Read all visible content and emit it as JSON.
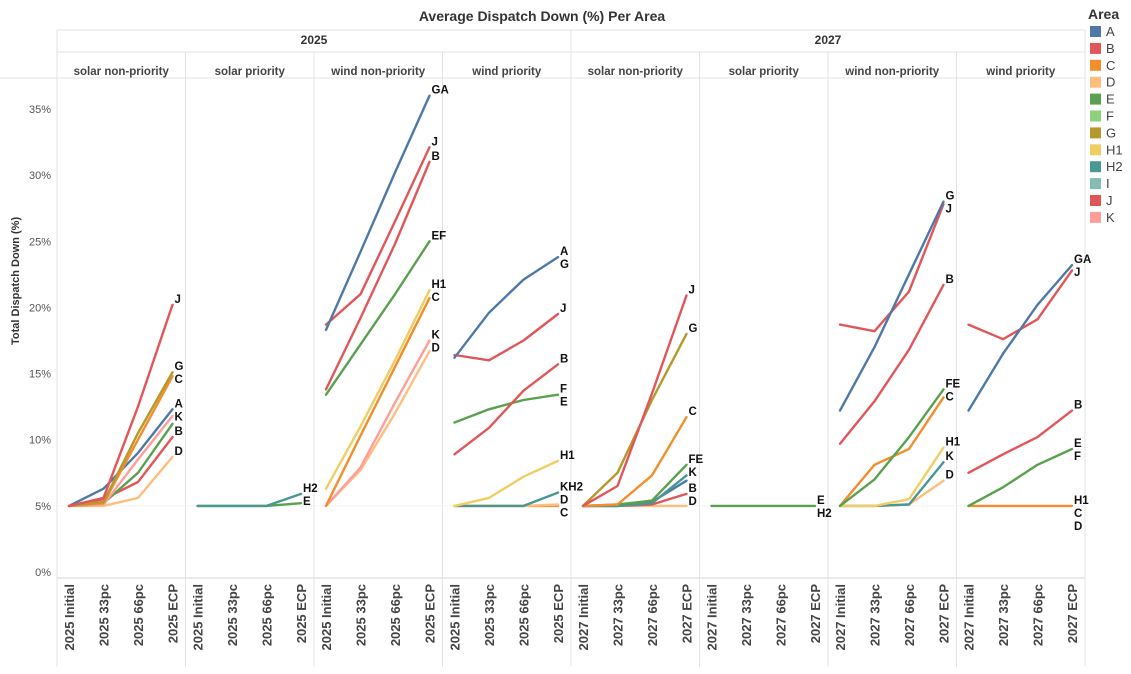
{
  "chart_data": {
    "type": "line",
    "title": "Average Dispatch Down (%) Per Area",
    "ylabel": "Total Dispatch Down (%)",
    "xlabel": "",
    "ylim": [
      0,
      37
    ],
    "yticks": [
      0,
      5,
      10,
      15,
      20,
      25,
      30,
      35
    ],
    "ytick_labels": [
      "0%",
      "5%",
      "10%",
      "15%",
      "20%",
      "25%",
      "30%",
      "35%"
    ],
    "grid": false,
    "legend_position": "right",
    "legend": {
      "title": "Area",
      "entries": [
        {
          "name": "A",
          "color": "#4e79a7"
        },
        {
          "name": "B",
          "color": "#e15759"
        },
        {
          "name": "C",
          "color": "#f28e2b"
        },
        {
          "name": "D",
          "color": "#ffbe7d"
        },
        {
          "name": "E",
          "color": "#59a14f"
        },
        {
          "name": "F",
          "color": "#8cd17d"
        },
        {
          "name": "G",
          "color": "#b6992d"
        },
        {
          "name": "H1",
          "color": "#f1ce63"
        },
        {
          "name": "H2",
          "color": "#499894"
        },
        {
          "name": "I",
          "color": "#86bcb6"
        },
        {
          "name": "J",
          "color": "#e15759"
        },
        {
          "name": "K",
          "color": "#ff9d9a"
        }
      ]
    },
    "years": [
      {
        "label": "2025",
        "panels": [
          0,
          1,
          2,
          3
        ]
      },
      {
        "label": "2027",
        "panels": [
          4,
          5,
          6,
          7
        ]
      }
    ],
    "panels": [
      {
        "label": "solar non-priority",
        "categories": [
          "2025 Initial",
          "2025 33pc",
          "2025 66pc",
          "2025 ECP"
        ],
        "series": [
          {
            "area": "J",
            "values": [
              5,
              5.6,
              12.5,
              20.2
            ]
          },
          {
            "area": "G",
            "values": [
              5,
              5.3,
              10.5,
              15.1
            ]
          },
          {
            "area": "C",
            "values": [
              5,
              5.2,
              10,
              14.8
            ]
          },
          {
            "area": "A",
            "values": [
              5,
              6.3,
              9,
              12.3
            ]
          },
          {
            "area": "K",
            "values": [
              5,
              5.1,
              8.5,
              11.8
            ]
          },
          {
            "area": "E",
            "values": [
              5,
              5.2,
              7.5,
              11.2
            ]
          },
          {
            "area": "B",
            "values": [
              5,
              5.5,
              6.8,
              10.2
            ]
          },
          {
            "area": "D",
            "values": [
              5,
              5,
              5.6,
              8.7
            ]
          }
        ],
        "labels": [
          {
            "text": "J",
            "area": "J"
          },
          {
            "text": "G",
            "area": "G"
          },
          {
            "text": "C",
            "area": "C"
          },
          {
            "text": "A",
            "area": "A"
          },
          {
            "text": "K",
            "area": "K"
          },
          {
            "text": "B",
            "area": "B"
          },
          {
            "text": "D",
            "area": "D"
          }
        ]
      },
      {
        "label": "solar priority",
        "categories": [
          "2025 Initial",
          "2025 33pc",
          "2025 66pc",
          "2025 ECP"
        ],
        "series": [
          {
            "area": "H2",
            "values": [
              5,
              5,
              5,
              5.9
            ]
          },
          {
            "area": "E",
            "values": [
              5,
              5,
              5,
              5.2
            ]
          }
        ],
        "labels": [
          {
            "text": "H2",
            "area": "H2"
          },
          {
            "text": "E",
            "area": "E"
          }
        ]
      },
      {
        "label": "wind non-priority",
        "categories": [
          "2025 Initial",
          "2025 33pc",
          "2025 66pc",
          "2025 ECP"
        ],
        "series": [
          {
            "area": "A",
            "values": [
              18.3,
              24.2,
              30.2,
              36
            ]
          },
          {
            "area": "J",
            "values": [
              18.7,
              21,
              26.5,
              32.1
            ]
          },
          {
            "area": "B",
            "values": [
              13.8,
              19.2,
              24.8,
              31
            ]
          },
          {
            "area": "E",
            "values": [
              13.4,
              17.2,
              21,
              25
            ]
          },
          {
            "area": "H1",
            "values": [
              6.3,
              11,
              16,
              21.3
            ]
          },
          {
            "area": "C",
            "values": [
              5,
              10.3,
              15.5,
              20.7
            ]
          },
          {
            "area": "K",
            "values": [
              5,
              7.9,
              12.8,
              17.5
            ]
          },
          {
            "area": "D",
            "values": [
              5,
              7.7,
              12,
              16.7
            ]
          }
        ],
        "labels": [
          {
            "text": "GA",
            "area": "A"
          },
          {
            "text": "J",
            "area": "J"
          },
          {
            "text": "B",
            "area": "B"
          },
          {
            "text": "EF",
            "area": "E"
          },
          {
            "text": "H1",
            "area": "H1"
          },
          {
            "text": "C",
            "area": "C"
          },
          {
            "text": "K",
            "area": "K"
          },
          {
            "text": "D",
            "area": "D"
          }
        ]
      },
      {
        "label": "wind priority",
        "categories": [
          "2025 Initial",
          "2025 33pc",
          "2025 66pc",
          "2025 ECP"
        ],
        "series": [
          {
            "area": "A",
            "values": [
              16.2,
              19.6,
              22.1,
              23.8
            ]
          },
          {
            "area": "J",
            "values": [
              16.4,
              16,
              17.5,
              19.5
            ]
          },
          {
            "area": "B",
            "values": [
              8.9,
              10.9,
              13.7,
              15.7
            ]
          },
          {
            "area": "E",
            "values": [
              11.3,
              12.3,
              13,
              13.4
            ]
          },
          {
            "area": "H1",
            "values": [
              5,
              5.6,
              7.2,
              8.4
            ]
          },
          {
            "area": "H2",
            "values": [
              5,
              5,
              5,
              6
            ]
          },
          {
            "area": "D",
            "values": [
              5,
              5,
              5,
              5.1
            ]
          },
          {
            "area": "C",
            "values": [
              5,
              5,
              5,
              5
            ]
          }
        ],
        "labels": [
          {
            "text": "A",
            "area": "A"
          },
          {
            "text": "G",
            "area": "A"
          },
          {
            "text": "J",
            "area": "J"
          },
          {
            "text": "B",
            "area": "B"
          },
          {
            "text": "F",
            "area": "E"
          },
          {
            "text": "E",
            "area": "E"
          },
          {
            "text": "H1",
            "area": "H1"
          },
          {
            "text": "KH2",
            "area": "H2"
          },
          {
            "text": "D",
            "area": "D"
          },
          {
            "text": "C",
            "area": "C"
          }
        ]
      },
      {
        "label": "solar non-priority",
        "categories": [
          "2027 Initial",
          "2027 33pc",
          "2027 66pc",
          "2027 ECP"
        ],
        "series": [
          {
            "area": "J",
            "values": [
              5,
              6.5,
              13.5,
              20.9
            ]
          },
          {
            "area": "G",
            "values": [
              5,
              7.5,
              13,
              18
            ]
          },
          {
            "area": "C",
            "values": [
              5,
              5.1,
              7.3,
              11.7
            ]
          },
          {
            "area": "E",
            "values": [
              5,
              5.1,
              5.4,
              8.1
            ]
          },
          {
            "area": "H2",
            "values": [
              5,
              5,
              5.2,
              7.3
            ]
          },
          {
            "area": "A",
            "values": [
              5,
              5,
              5.3,
              6.9
            ]
          },
          {
            "area": "B",
            "values": [
              5,
              5,
              5.1,
              5.9
            ]
          },
          {
            "area": "D",
            "values": [
              5,
              5,
              5,
              5
            ]
          }
        ],
        "labels": [
          {
            "text": "J",
            "area": "J"
          },
          {
            "text": "G",
            "area": "G"
          },
          {
            "text": "C",
            "area": "C"
          },
          {
            "text": "FE",
            "area": "E"
          },
          {
            "text": "K",
            "area": "H2"
          },
          {
            "text": "B",
            "area": "B"
          },
          {
            "text": "D",
            "area": "D"
          }
        ]
      },
      {
        "label": "solar priority",
        "categories": [
          "2027 Initial",
          "2027 33pc",
          "2027 66pc",
          "2027 ECP"
        ],
        "series": [
          {
            "area": "E",
            "values": [
              5,
              5,
              5,
              5
            ]
          }
        ],
        "labels": [
          {
            "text": "E",
            "area": "E"
          },
          {
            "text": "H2",
            "area": "H2"
          }
        ]
      },
      {
        "label": "wind non-priority",
        "categories": [
          "2027 Initial",
          "2027 33pc",
          "2027 66pc",
          "2027 ECP"
        ],
        "series": [
          {
            "area": "A",
            "values": [
              12.2,
              17,
              22.5,
              28
            ]
          },
          {
            "area": "J",
            "values": [
              18.7,
              18.2,
              21.2,
              27.8
            ]
          },
          {
            "area": "B",
            "values": [
              9.7,
              12.9,
              16.8,
              21.7
            ]
          },
          {
            "area": "E",
            "values": [
              5,
              7,
              10.2,
              13.8
            ]
          },
          {
            "area": "C",
            "values": [
              5,
              8.1,
              9.3,
              13.2
            ]
          },
          {
            "area": "H1",
            "values": [
              5,
              5,
              5.5,
              9.4
            ]
          },
          {
            "area": "H2",
            "values": [
              5,
              5,
              5.1,
              8.3
            ]
          },
          {
            "area": "D",
            "values": [
              5,
              5,
              5.1,
              6.9
            ]
          }
        ],
        "labels": [
          {
            "text": "G",
            "area": "A"
          },
          {
            "text": "J",
            "area": "J"
          },
          {
            "text": "B",
            "area": "B"
          },
          {
            "text": "FE",
            "area": "E"
          },
          {
            "text": "C",
            "area": "C"
          },
          {
            "text": "H1",
            "area": "H1"
          },
          {
            "text": "K",
            "area": "H2"
          },
          {
            "text": "D",
            "area": "D"
          }
        ]
      },
      {
        "label": "wind priority",
        "categories": [
          "2027 Initial",
          "2027 33pc",
          "2027 66pc",
          "2027 ECP"
        ],
        "series": [
          {
            "area": "A",
            "values": [
              12.2,
              16.5,
              20.2,
              23.2
            ]
          },
          {
            "area": "J",
            "values": [
              18.7,
              17.6,
              19.1,
              22.8
            ]
          },
          {
            "area": "B",
            "values": [
              7.5,
              8.9,
              10.2,
              12.2
            ]
          },
          {
            "area": "E",
            "values": [
              5,
              6.4,
              8.1,
              9.3
            ]
          },
          {
            "area": "C",
            "values": [
              5,
              5,
              5,
              5
            ]
          }
        ],
        "labels": [
          {
            "text": "GA",
            "area": "A"
          },
          {
            "text": "J",
            "area": "J"
          },
          {
            "text": "B",
            "area": "B"
          },
          {
            "text": "E",
            "area": "E"
          },
          {
            "text": "F",
            "area": "E"
          },
          {
            "text": "H1",
            "area": "C"
          },
          {
            "text": "C",
            "area": "C"
          },
          {
            "text": "D",
            "area": "C"
          }
        ]
      }
    ]
  }
}
